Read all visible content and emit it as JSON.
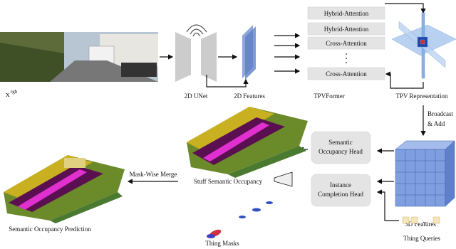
{
  "input": {
    "base": "x",
    "sup": "rgb"
  },
  "unet": {
    "label": "2D UNet"
  },
  "features_2d": {
    "label": "2D Features"
  },
  "tpvformer": {
    "label": "TPVFormer",
    "blocks": [
      "Hybrid-Attention",
      "Hybrid-Attention",
      "Cross-Attention",
      "Cross-Attention"
    ]
  },
  "tpv": {
    "label": "TPV Representation"
  },
  "broadcast": {
    "lines": [
      "Broadcast",
      "& Add"
    ]
  },
  "semantic_head": {
    "lines": [
      "Semantic",
      "Occupancy Head"
    ]
  },
  "instance_head": {
    "lines": [
      "Instance",
      "Completion Head"
    ]
  },
  "features_3d": {
    "label": "3D Features"
  },
  "thing_queries": {
    "label": "Thing Queries",
    "ellipsis": "..."
  },
  "stuff": {
    "label": "Stuff Semantic Occupancy"
  },
  "merge": {
    "label": "Mask-Wise Merge"
  },
  "prediction": {
    "label": "Semantic Occupancy Prediction"
  },
  "thing_masks": {
    "label": "Thing Masks"
  }
}
